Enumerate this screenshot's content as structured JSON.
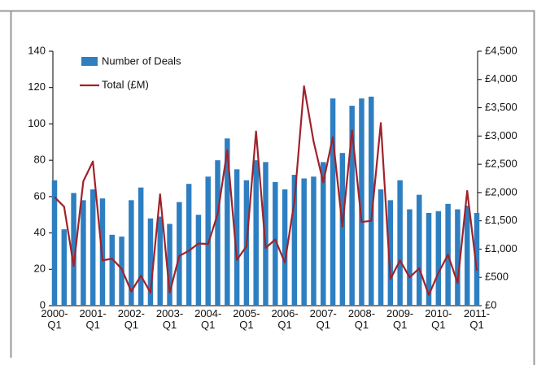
{
  "chart_data": {
    "type": "bar-line",
    "categories": [
      "2000-\nQ1",
      null,
      null,
      null,
      "2001-\nQ1",
      null,
      null,
      null,
      "2002-\nQ1",
      null,
      null,
      null,
      "2003-\nQ1",
      null,
      null,
      null,
      "2004-\nQ1",
      null,
      null,
      null,
      "2005-\nQ1",
      null,
      null,
      null,
      "2006-\nQ1",
      null,
      null,
      null,
      "2007-\nQ1",
      null,
      null,
      null,
      "2008-\nQ1",
      null,
      null,
      null,
      "2009-\nQ1",
      null,
      null,
      null,
      "2010-\nQ1",
      null,
      null,
      null,
      "2011-\nQ1"
    ],
    "series": [
      {
        "name": "Number of Deals",
        "type": "bar",
        "color": "#2e7fc1",
        "values": [
          69,
          42,
          62,
          58,
          64,
          59,
          39,
          38,
          58,
          65,
          48,
          49,
          45,
          57,
          67,
          50,
          71,
          80,
          92,
          75,
          69,
          80,
          79,
          68,
          64,
          72,
          70,
          71,
          79,
          114,
          84,
          110,
          114,
          115,
          64,
          58,
          69,
          53,
          61,
          51,
          52,
          56,
          53,
          55,
          51
        ]
      },
      {
        "name": "Total (£M)",
        "type": "line",
        "axis": "y2",
        "color": "#a0222a",
        "values": [
          1920,
          1750,
          700,
          2200,
          2550,
          800,
          830,
          650,
          250,
          530,
          230,
          1970,
          230,
          880,
          970,
          1100,
          1090,
          1620,
          2750,
          810,
          1050,
          3080,
          1020,
          1170,
          760,
          1850,
          3880,
          2900,
          2180,
          2980,
          1400,
          3100,
          1480,
          1500,
          3230,
          470,
          800,
          500,
          660,
          190,
          580,
          900,
          400,
          2030,
          620
        ]
      }
    ],
    "ylim": [
      0,
      140
    ],
    "yticks": [
      0,
      20,
      40,
      60,
      80,
      100,
      120,
      140
    ],
    "y2lim": [
      0,
      4500
    ],
    "y2ticks": [
      {
        "value": 0,
        "label": "£0"
      },
      {
        "value": 500,
        "label": "£500"
      },
      {
        "value": 1000,
        "label": "£1,000"
      },
      {
        "value": 1500,
        "label": "£1,500"
      },
      {
        "value": 2000,
        "label": "£2,000"
      },
      {
        "value": 2500,
        "label": "£2,500"
      },
      {
        "value": 3000,
        "label": "£3,000"
      },
      {
        "value": 3500,
        "label": "£3,500"
      },
      {
        "value": 4000,
        "label": "£4,000"
      },
      {
        "value": 4500,
        "label": "£4,500"
      }
    ],
    "legend": "upper left"
  }
}
